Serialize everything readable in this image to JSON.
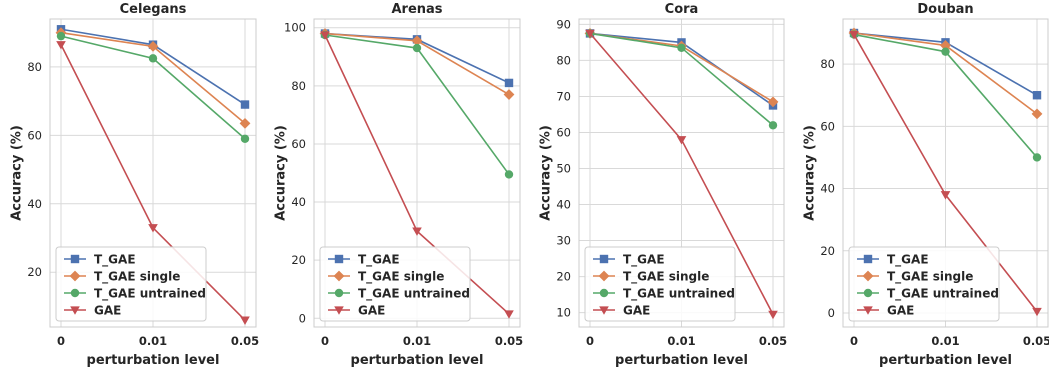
{
  "chart_data": [
    {
      "type": "line",
      "title": "Celegans",
      "xlabel": "perturbation level",
      "ylabel": "Accuracy (%)",
      "categories": [
        "0",
        "0.01",
        "0.05"
      ],
      "ylim": [
        4,
        94
      ],
      "yticks": [
        20,
        40,
        60,
        80
      ],
      "grid": true,
      "legend": "bottom-left",
      "series": [
        {
          "name": "T_GAE",
          "marker": "square",
          "color": "#4c72b0",
          "values": [
            91,
            86.5,
            69
          ]
        },
        {
          "name": "T_GAE single",
          "marker": "diamond",
          "color": "#dd8452",
          "values": [
            90,
            86,
            63.5
          ]
        },
        {
          "name": "T_GAE untrained",
          "marker": "circle",
          "color": "#55a868",
          "values": [
            89,
            82.5,
            59
          ]
        },
        {
          "name": "GAE",
          "marker": "triangle-down",
          "color": "#c44e52",
          "values": [
            86.5,
            33,
            6
          ]
        }
      ]
    },
    {
      "type": "line",
      "title": "Arenas",
      "xlabel": "perturbation level",
      "ylabel": "Accuracy (%)",
      "categories": [
        "0",
        "0.01",
        "0.05"
      ],
      "ylim": [
        -3,
        103
      ],
      "yticks": [
        0,
        20,
        40,
        60,
        80,
        100
      ],
      "grid": true,
      "legend": "bottom-left",
      "series": [
        {
          "name": "T_GAE",
          "marker": "square",
          "color": "#4c72b0",
          "values": [
            98,
            96,
            81
          ]
        },
        {
          "name": "T_GAE single",
          "marker": "diamond",
          "color": "#dd8452",
          "values": [
            98,
            95.5,
            77
          ]
        },
        {
          "name": "T_GAE untrained",
          "marker": "circle",
          "color": "#55a868",
          "values": [
            97.5,
            93,
            49.5
          ]
        },
        {
          "name": "GAE",
          "marker": "triangle-down",
          "color": "#c44e52",
          "values": [
            97.5,
            30,
            1.5
          ]
        }
      ]
    },
    {
      "type": "line",
      "title": "Cora",
      "xlabel": "perturbation level",
      "ylabel": "Accuracy (%)",
      "categories": [
        "0",
        "0.01",
        "0.05"
      ],
      "ylim": [
        6,
        91.5
      ],
      "yticks": [
        10,
        20,
        30,
        40,
        50,
        60,
        70,
        80,
        90
      ],
      "grid": true,
      "legend": "bottom-left",
      "series": [
        {
          "name": "T_GAE",
          "marker": "square",
          "color": "#4c72b0",
          "values": [
            87.5,
            85,
            67.5
          ]
        },
        {
          "name": "T_GAE single",
          "marker": "diamond",
          "color": "#dd8452",
          "values": [
            87.5,
            84,
            68.5
          ]
        },
        {
          "name": "T_GAE untrained",
          "marker": "circle",
          "color": "#55a868",
          "values": [
            87.5,
            83.5,
            62
          ]
        },
        {
          "name": "GAE",
          "marker": "triangle-down",
          "color": "#c44e52",
          "values": [
            87.5,
            58,
            9.5
          ]
        }
      ]
    },
    {
      "type": "line",
      "title": "Douban",
      "xlabel": "perturbation level",
      "ylabel": "Accuracy (%)",
      "categories": [
        "0",
        "0.01",
        "0.05"
      ],
      "ylim": [
        -4.5,
        94.5
      ],
      "yticks": [
        0,
        20,
        40,
        60,
        80
      ],
      "grid": true,
      "legend": "bottom-left",
      "series": [
        {
          "name": "T_GAE",
          "marker": "square",
          "color": "#4c72b0",
          "values": [
            90,
            87,
            70
          ]
        },
        {
          "name": "T_GAE single",
          "marker": "diamond",
          "color": "#dd8452",
          "values": [
            90,
            86,
            64
          ]
        },
        {
          "name": "T_GAE untrained",
          "marker": "circle",
          "color": "#55a868",
          "values": [
            89.5,
            84,
            50
          ]
        },
        {
          "name": "GAE",
          "marker": "triangle-down",
          "color": "#c44e52",
          "values": [
            89.5,
            38,
            0.5
          ]
        }
      ]
    }
  ]
}
